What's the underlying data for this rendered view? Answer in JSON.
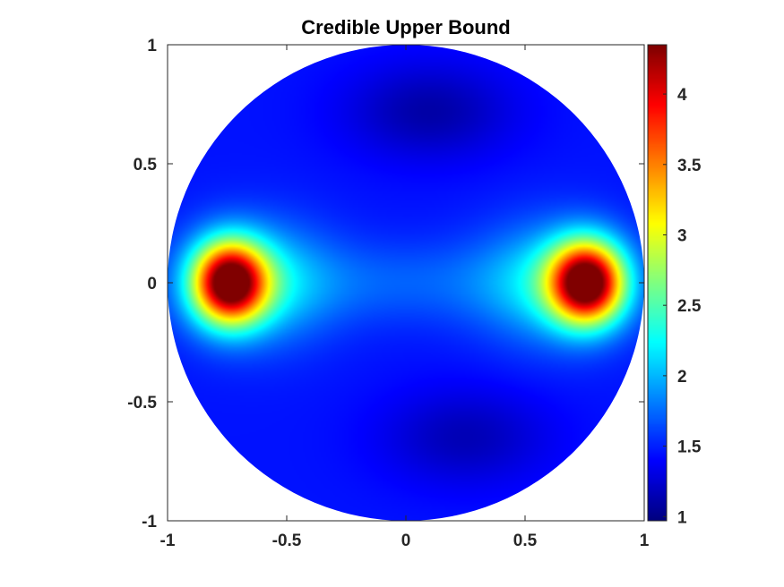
{
  "chart_data": {
    "type": "heatmap",
    "title": "Credible Upper Bound",
    "xlabel": "",
    "ylabel": "",
    "xlim": [
      -1,
      1
    ],
    "ylim": [
      -1,
      1
    ],
    "domain_shape": "unit disk",
    "colormap": "jet",
    "grid": false,
    "x_ticks": [
      -1,
      -0.5,
      0,
      0.5,
      1
    ],
    "x_tick_labels": [
      "-1",
      "-0.5",
      "0",
      "0.5",
      "1"
    ],
    "y_ticks": [
      -1,
      -0.5,
      0,
      0.5,
      1
    ],
    "y_tick_labels": [
      "-1",
      "-0.5",
      "0",
      "0.5",
      "1"
    ],
    "colorbar": {
      "placement": "right",
      "range": [
        0.97,
        4.35
      ],
      "ticks": [
        1,
        1.5,
        2,
        2.5,
        3,
        3.5,
        4
      ],
      "tick_labels": [
        "1",
        "1.5",
        "2",
        "2.5",
        "3",
        "3.5",
        "4"
      ]
    },
    "field": {
      "baseline": 1.45,
      "features": [
        {
          "x": -0.74,
          "y": 0.0,
          "peak": 4.3
        },
        {
          "x": 0.76,
          "y": 0.0,
          "peak": 4.35
        },
        {
          "x": 0.1,
          "y": 0.72,
          "min": 1.05
        },
        {
          "x": 0.25,
          "y": -0.65,
          "min": 1.1
        }
      ]
    }
  }
}
